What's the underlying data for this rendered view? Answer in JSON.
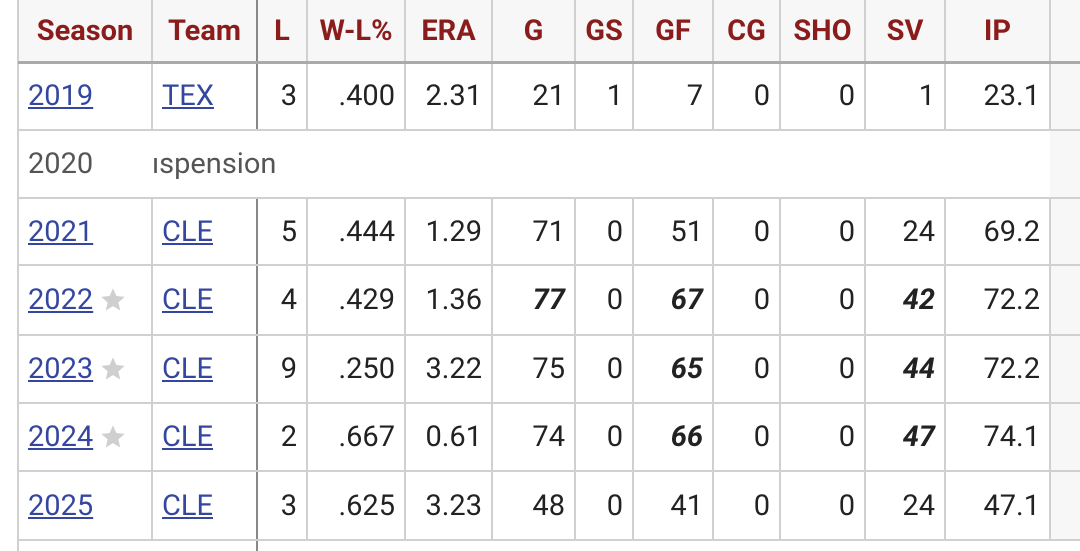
{
  "table": {
    "columns": [
      "Season",
      "Team",
      "L",
      "W-L%",
      "ERA",
      "G",
      "GS",
      "GF",
      "CG",
      "SHO",
      "SV",
      "IP"
    ],
    "rows": [
      {
        "cells": [
          "2019",
          "TEX",
          "3",
          ".400",
          "2.31",
          "21",
          "1",
          "7",
          "0",
          "0",
          "1",
          "23.1"
        ],
        "star": false,
        "bold": []
      },
      {
        "cells": [
          "2020",
          "ıspension"
        ],
        "star": false,
        "bold": []
      },
      {
        "cells": [
          "2021",
          "CLE",
          "5",
          ".444",
          "1.29",
          "71",
          "0",
          "51",
          "0",
          "0",
          "24",
          "69.2"
        ],
        "star": false,
        "bold": []
      },
      {
        "cells": [
          "2022",
          "CLE",
          "4",
          ".429",
          "1.36",
          "77",
          "0",
          "67",
          "0",
          "0",
          "42",
          "72.2"
        ],
        "star": true,
        "bold": [
          5,
          7,
          10
        ]
      },
      {
        "cells": [
          "2023",
          "CLE",
          "9",
          ".250",
          "3.22",
          "75",
          "0",
          "65",
          "0",
          "0",
          "44",
          "72.2"
        ],
        "star": true,
        "bold": [
          7,
          10
        ]
      },
      {
        "cells": [
          "2024",
          "CLE",
          "2",
          ".667",
          "0.61",
          "74",
          "0",
          "66",
          "0",
          "0",
          "47",
          "74.1"
        ],
        "star": true,
        "bold": [
          7,
          10
        ]
      },
      {
        "cells": [
          "2025",
          "CLE",
          "3",
          ".625",
          "3.23",
          "48",
          "0",
          "41",
          "0",
          "0",
          "24",
          "47.1"
        ],
        "star": false,
        "bold": []
      }
    ]
  }
}
